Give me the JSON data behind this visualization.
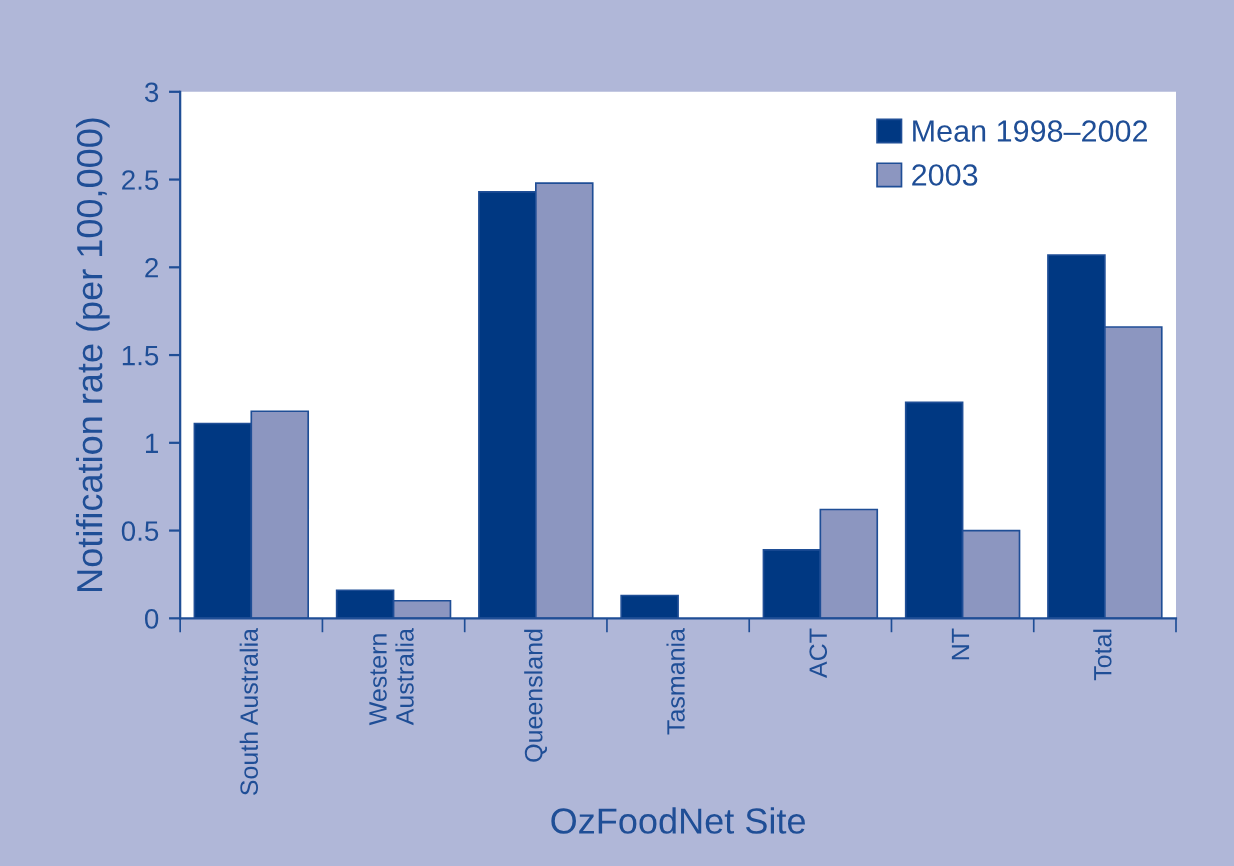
{
  "chart_data": {
    "type": "bar",
    "xlabel": "OzFoodNet Site",
    "ylabel": "Notification rate (per 100,000)",
    "categories": [
      "South Australia",
      "Western\nAustralia",
      "Queensland",
      "Tasmania",
      "ACT",
      "NT",
      "Total"
    ],
    "series": [
      {
        "name": "Mean 1998–2002",
        "color": "#003882",
        "values": [
          1.11,
          0.16,
          2.43,
          0.13,
          0.39,
          1.23,
          2.07
        ]
      },
      {
        "name": "2003",
        "color": "#8c96c0",
        "values": [
          1.18,
          0.1,
          2.48,
          null,
          0.62,
          0.5,
          1.66
        ]
      }
    ],
    "ylim": [
      0,
      3
    ],
    "yticks": [
      0,
      0.5,
      1,
      1.5,
      2,
      2.5,
      3
    ],
    "grid": false,
    "legend": "top right"
  }
}
